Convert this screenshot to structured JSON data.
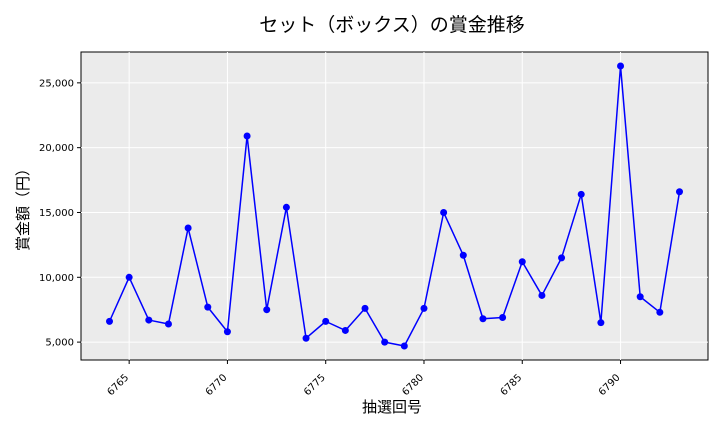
{
  "chart_data": {
    "type": "line",
    "title": "セット（ボックス）の賞金推移",
    "xlabel": "抽選回号",
    "ylabel": "賞金額（円）",
    "x": [
      6764,
      6765,
      6766,
      6767,
      6768,
      6769,
      6770,
      6771,
      6772,
      6773,
      6774,
      6775,
      6776,
      6777,
      6778,
      6779,
      6780,
      6781,
      6782,
      6783,
      6784,
      6785,
      6786,
      6787,
      6788,
      6789,
      6790,
      6791,
      6792,
      6793
    ],
    "series": [
      {
        "values": [
          6600,
          10000,
          6700,
          6400,
          13800,
          7700,
          5800,
          20900,
          7500,
          15400,
          5300,
          6600,
          5900,
          7600,
          5000,
          4700,
          7600,
          15000,
          11700,
          6800,
          6900,
          11200,
          8600,
          11500,
          16400,
          6500,
          26300,
          8500,
          7300,
          16600
        ],
        "color": "#0000ff"
      }
    ],
    "xticks": [
      "6765",
      "6770",
      "6775",
      "6780",
      "6785",
      "6790"
    ],
    "yticks": [
      "5,000",
      "10,000",
      "15,000",
      "20,000",
      "25,000"
    ],
    "xlim": [
      6762.55,
      6794.45
    ],
    "ylim": [
      3620,
      27380
    ],
    "grid": true,
    "background": "#ebebeb"
  }
}
